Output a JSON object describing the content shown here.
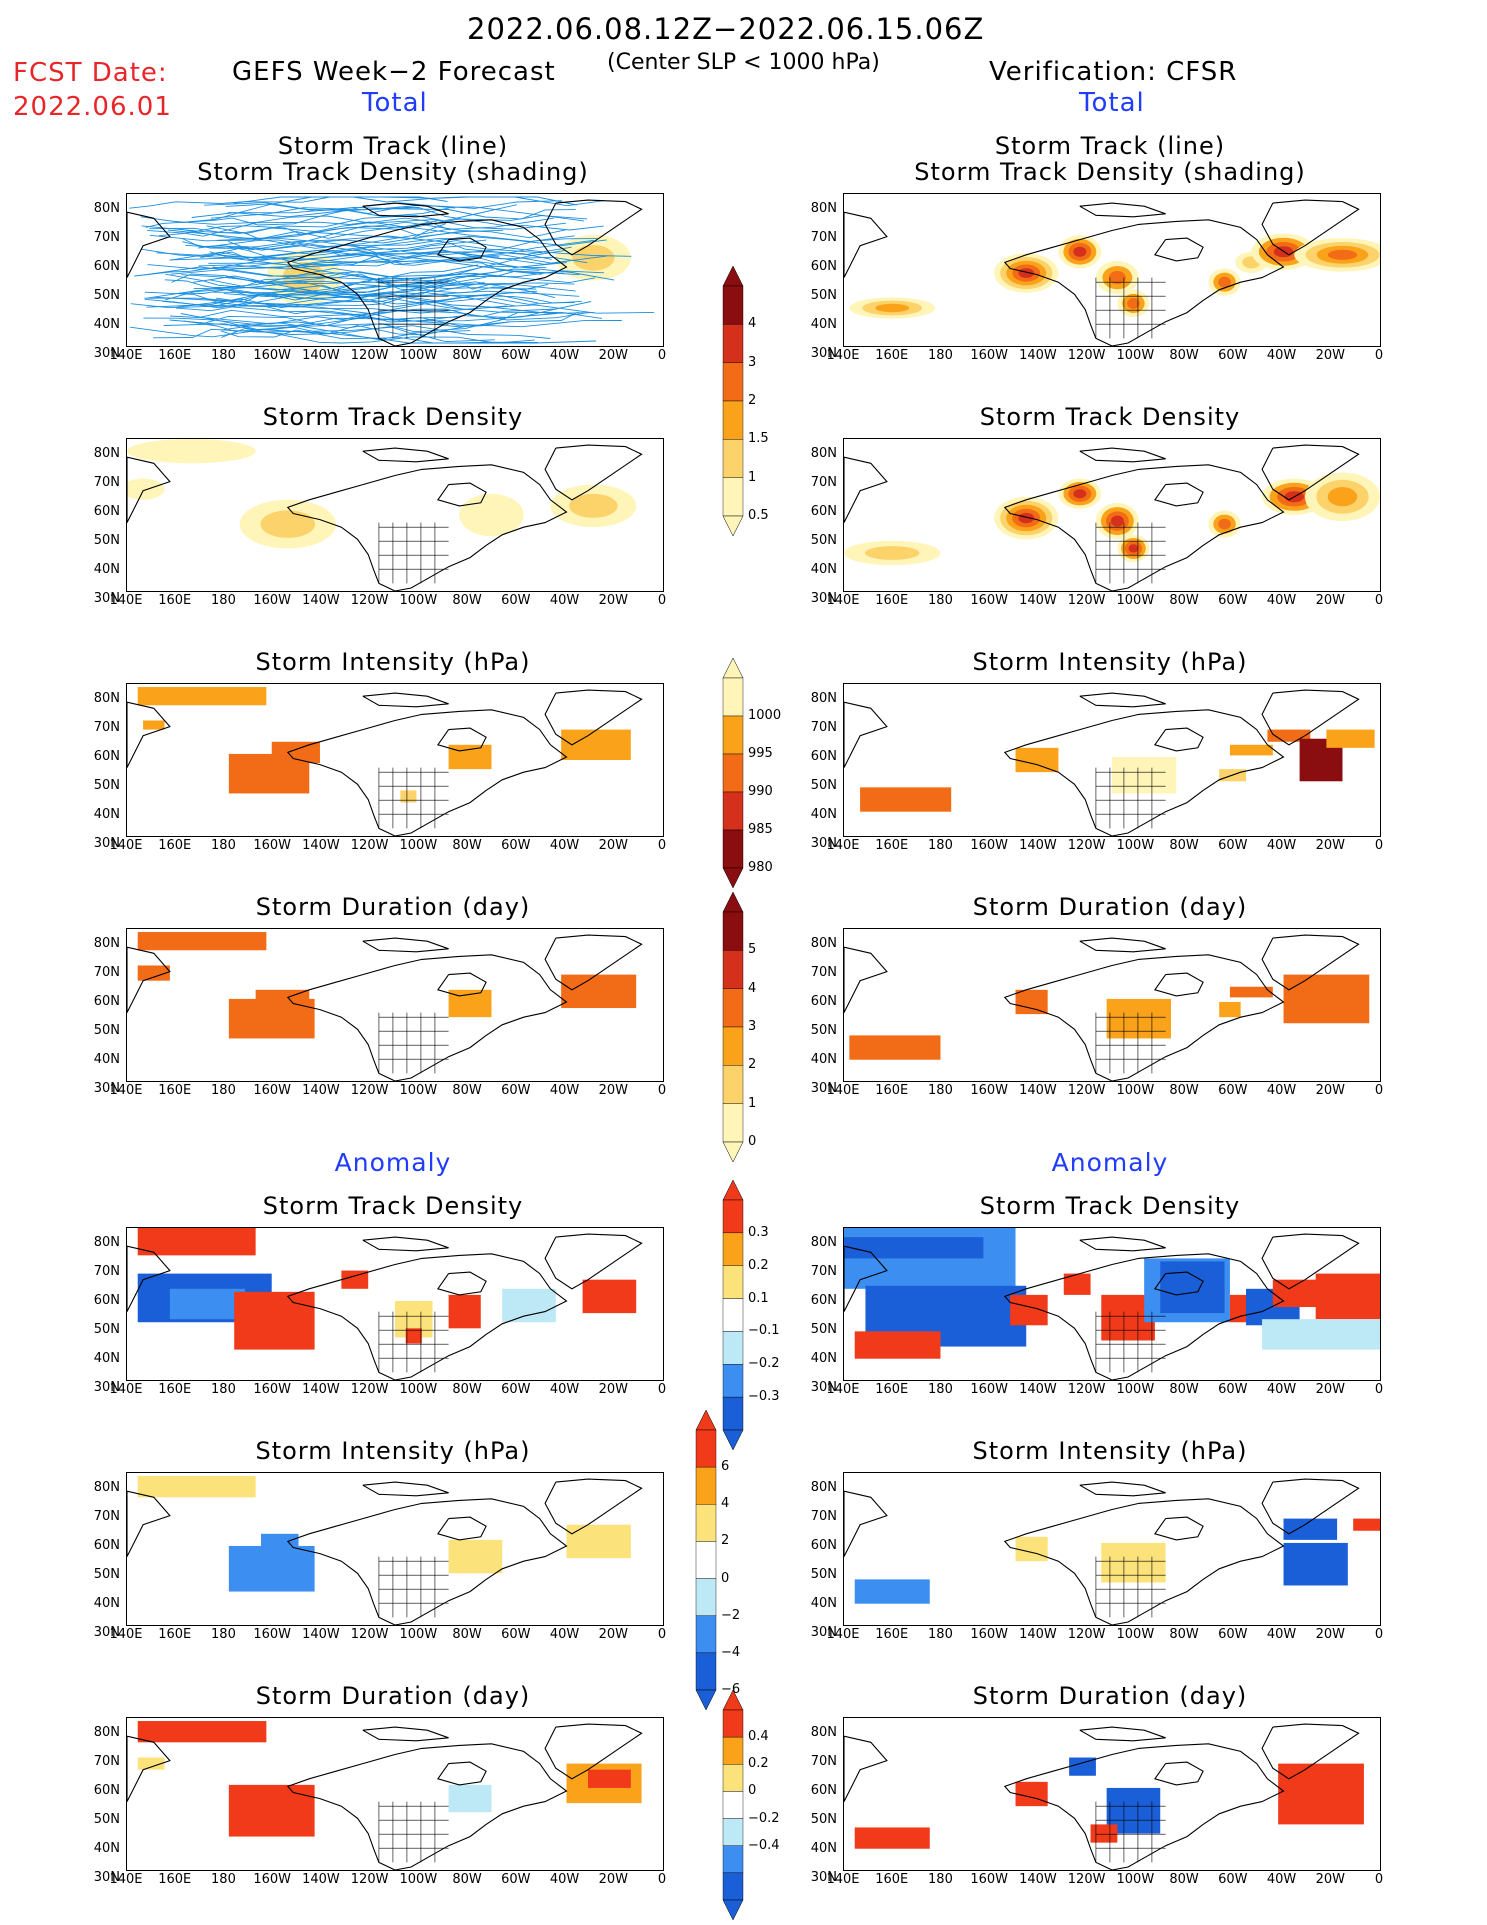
{
  "header": {
    "period": "2022.06.08.12Z−2022.06.15.06Z",
    "fcst_label": "FCST Date:",
    "fcst_date": "2022.06.01",
    "left_title": "GEFS Week−2 Forecast",
    "criterion": "(Center SLP < 1000 hPa)",
    "right_title": "Verification: CFSR",
    "total_label": "Total",
    "anomaly_label": "Anomaly"
  },
  "axes": {
    "lat_labels": [
      "80N",
      "70N",
      "60N",
      "50N",
      "40N",
      "30N"
    ],
    "lon_labels": [
      "140E",
      "160E",
      "180",
      "160W",
      "140W",
      "120W",
      "100W",
      "80W",
      "60W",
      "40W",
      "20W",
      "0"
    ]
  },
  "panel_titles": {
    "track_line": "Storm Track (line)",
    "track_shading": "Storm Track Density (shading)",
    "density": "Storm Track Density",
    "intensity": "Storm Intensity (hPa)",
    "duration": "Storm Duration (day)"
  },
  "colorbars": {
    "density_total": [
      "4",
      "3",
      "2",
      "1.5",
      "1",
      "0.5"
    ],
    "intensity_total": [
      "1000",
      "995",
      "990",
      "985",
      "980"
    ],
    "duration_total": [
      "5",
      "4",
      "3",
      "2",
      "1",
      "0"
    ],
    "density_anom": [
      "0.3",
      "0.2",
      "0.1",
      "−0.1",
      "−0.2",
      "−0.3"
    ],
    "intensity_anom": [
      "6",
      "4",
      "2",
      "0",
      "−2",
      "−4",
      "−6"
    ],
    "duration_anom": [
      "0.4",
      "0.2",
      "0",
      "−0.2",
      "−0.4"
    ]
  },
  "colors": {
    "warm_scale": [
      "#fff5b8",
      "#fcd36b",
      "#f9a21a",
      "#f26b16",
      "#d4301b",
      "#8a0d10"
    ],
    "anom_scale": [
      "#1b5fd8",
      "#3c8ef0",
      "#bde8f6",
      "#ffffff",
      "#fce27a",
      "#f9a21a",
      "#f03a1a"
    ],
    "track_line": "#1a8fe0"
  }
}
